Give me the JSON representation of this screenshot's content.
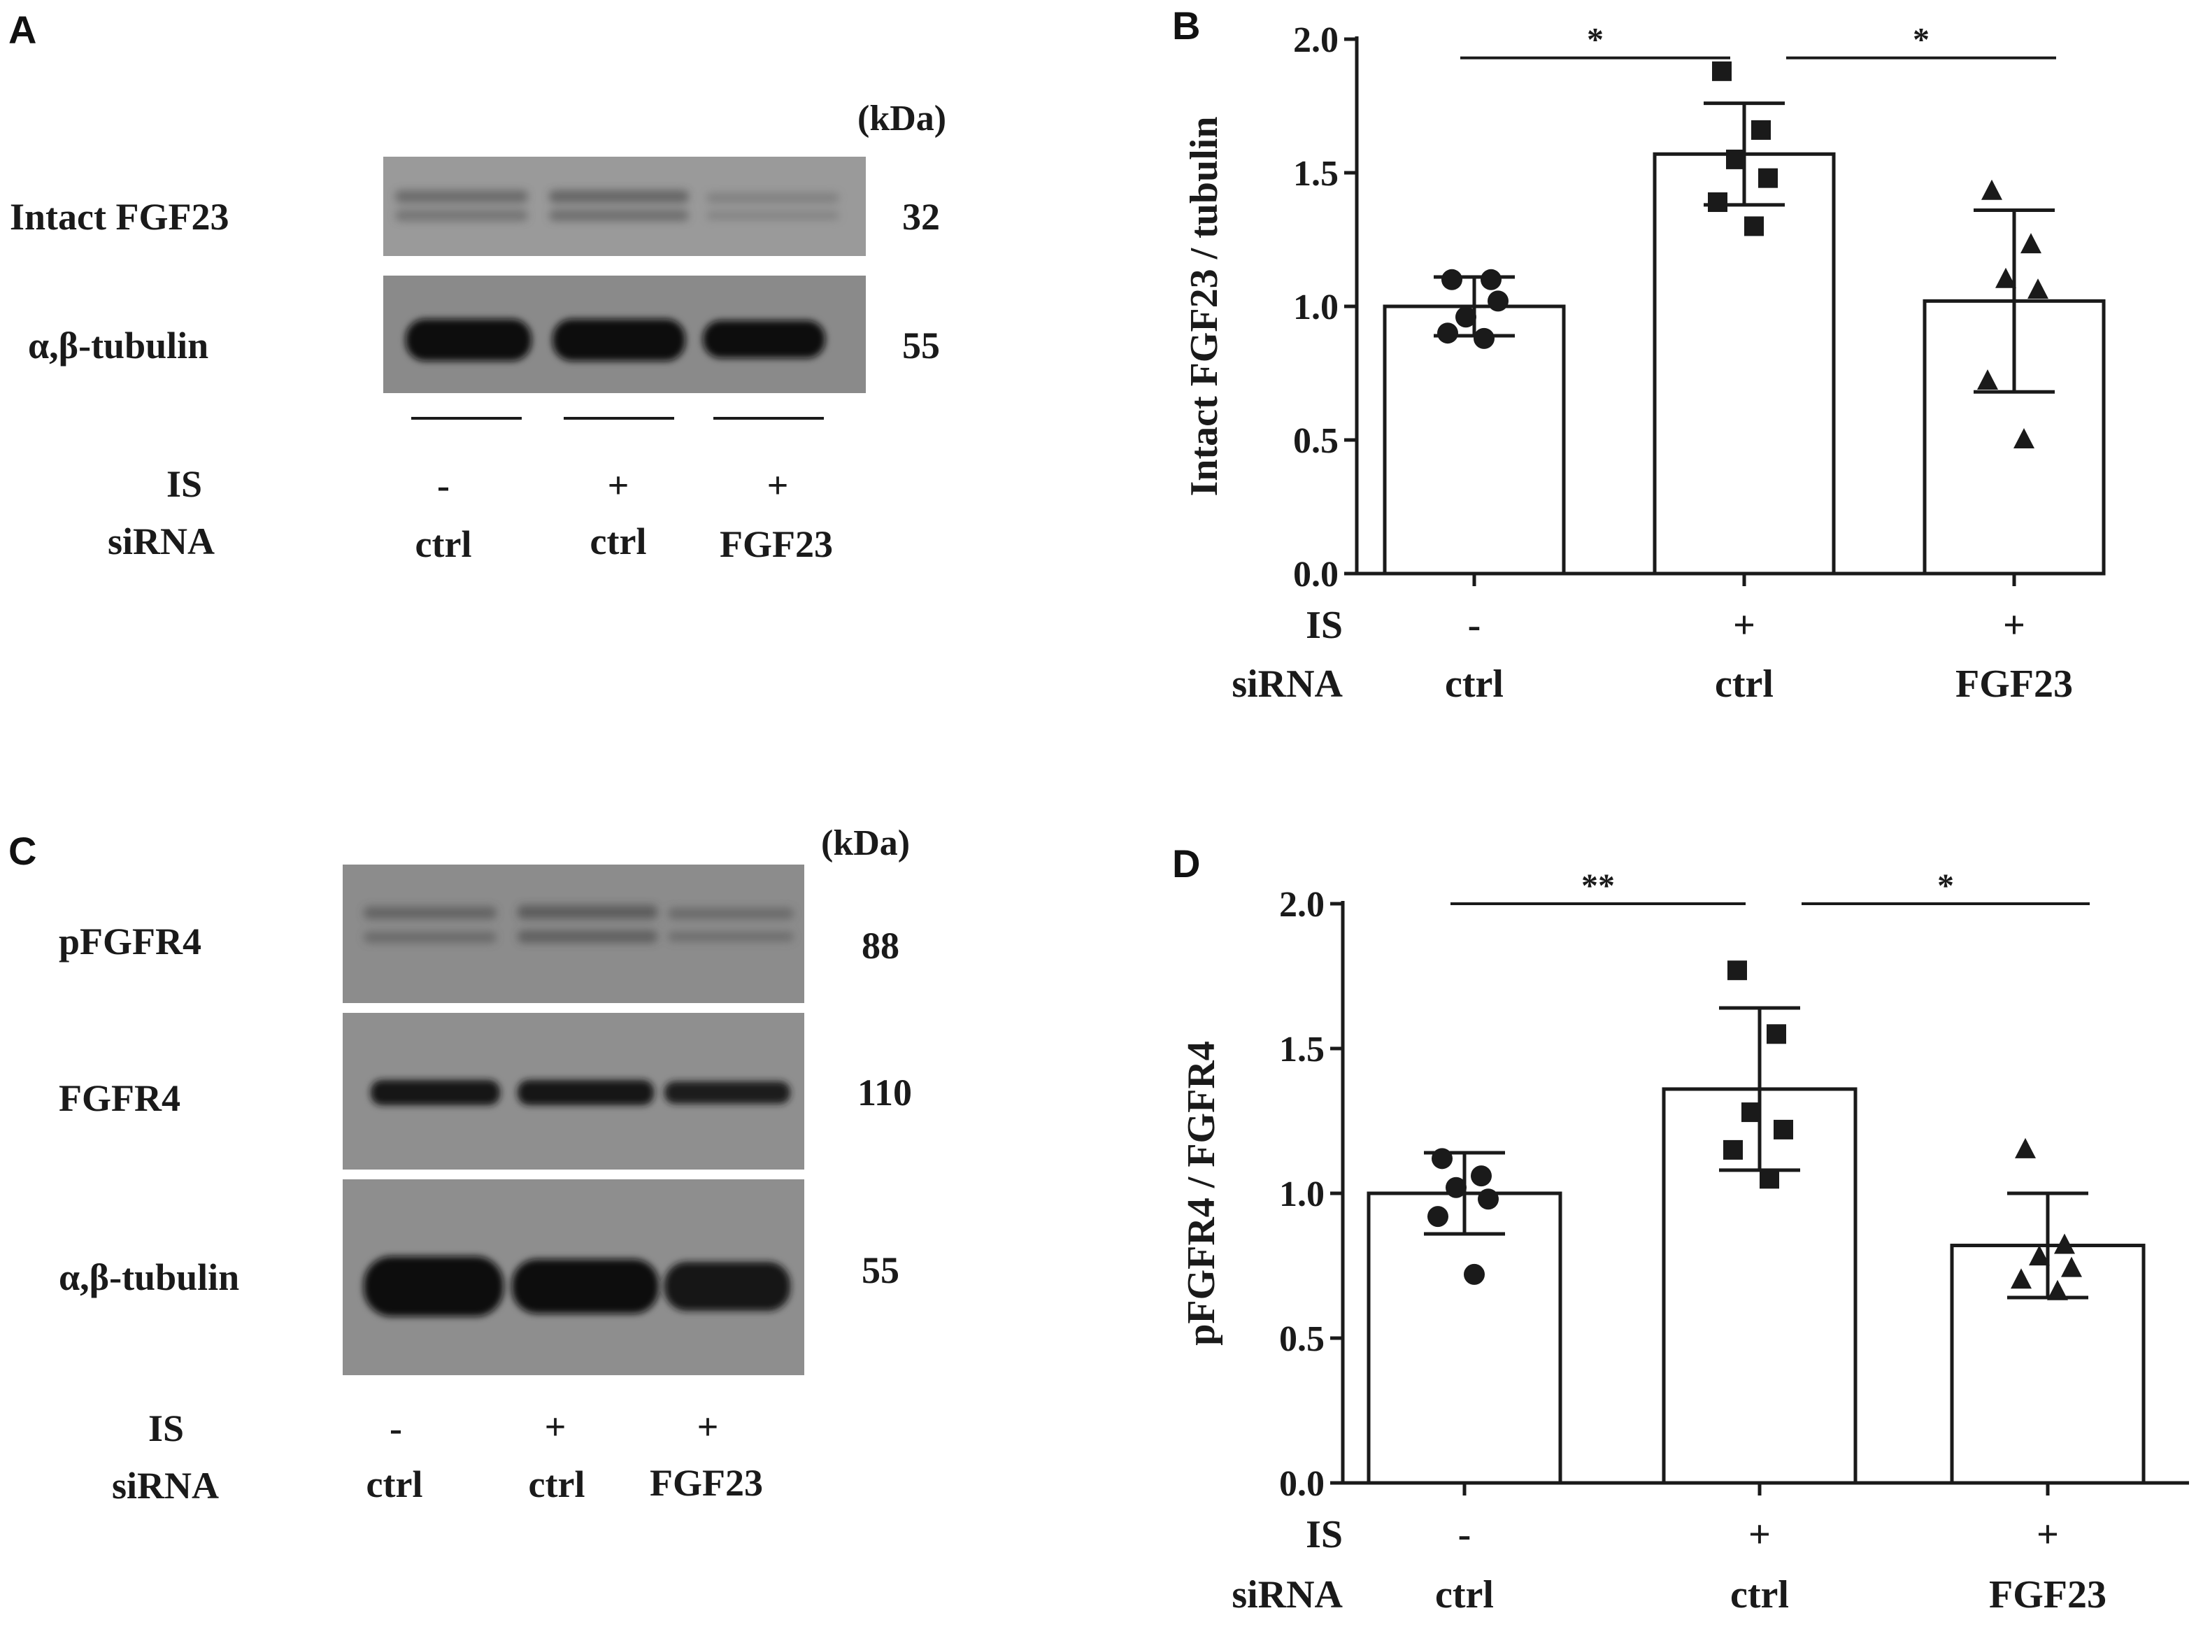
{
  "colors": {
    "ink": "#1a1a1a",
    "bar_fill": "#ffffff",
    "blot_background": "#8f8f8f",
    "blot_band": "#111111"
  },
  "panel_a": {
    "letter": "A",
    "unit": "(kDa)",
    "bands": [
      {
        "label": "Intact  FGF23",
        "kda": "32"
      },
      {
        "label": "α,β-tubulin",
        "kda": "55"
      }
    ],
    "conditions": {
      "row1_label": "IS",
      "row2_label": "siRNA",
      "lanes": [
        {
          "is": "-",
          "sirna": "ctrl"
        },
        {
          "is": "+",
          "sirna": "ctrl"
        },
        {
          "is": "+",
          "sirna": "FGF23"
        }
      ]
    }
  },
  "panel_c": {
    "letter": "C",
    "unit": "(kDa)",
    "bands": [
      {
        "label": "pFGFR4",
        "kda": "88"
      },
      {
        "label": "FGFR4",
        "kda": "110"
      },
      {
        "label": "α,β-tubulin",
        "kda": "55"
      }
    ],
    "conditions": {
      "row1_label": "IS",
      "row2_label": "siRNA",
      "lanes": [
        {
          "is": "-",
          "sirna": "ctrl"
        },
        {
          "is": "+",
          "sirna": "ctrl"
        },
        {
          "is": "+",
          "sirna": "FGF23"
        }
      ]
    }
  },
  "chart_data": [
    {
      "panel": "B",
      "type": "bar",
      "ylabel": "Intact FGF23 / tubulin",
      "ylim": [
        0,
        2.0
      ],
      "yticks": [
        "0.0",
        "0.5",
        "1.0",
        "1.5",
        "2.0"
      ],
      "row1_label": "IS",
      "row2_label": "siRNA",
      "categories": [
        {
          "is": "-",
          "sirna": "ctrl"
        },
        {
          "is": "+",
          "sirna": "ctrl"
        },
        {
          "is": "+",
          "sirna": "FGF23"
        }
      ],
      "values": [
        1.0,
        1.57,
        1.02
      ],
      "sd": [
        0.11,
        0.19,
        0.34
      ],
      "markers": [
        "circle",
        "square",
        "triangle"
      ],
      "points": [
        [
          1.1,
          1.1,
          0.96,
          1.02,
          0.9,
          0.88
        ],
        [
          1.88,
          1.66,
          1.55,
          1.48,
          1.39,
          1.3
        ],
        [
          1.43,
          1.23,
          1.1,
          1.06,
          0.72,
          0.5
        ]
      ],
      "significance": [
        {
          "from": 0,
          "to": 1,
          "label": "*",
          "y": 1.93
        },
        {
          "from": 1,
          "to": 2,
          "label": "*",
          "y": 1.93
        }
      ]
    },
    {
      "panel": "D",
      "type": "bar",
      "ylabel": "pFGFR4 / FGFR4",
      "ylim": [
        0,
        2.0
      ],
      "yticks": [
        "0.0",
        "0.5",
        "1.0",
        "1.5",
        "2.0"
      ],
      "row1_label": "IS",
      "row2_label": "siRNA",
      "categories": [
        {
          "is": "-",
          "sirna": "ctrl"
        },
        {
          "is": "+",
          "sirna": "ctrl"
        },
        {
          "is": "+",
          "sirna": "FGF23"
        }
      ],
      "values": [
        1.0,
        1.36,
        0.82
      ],
      "sd": [
        0.14,
        0.28,
        0.18
      ],
      "markers": [
        "circle",
        "square",
        "triangle"
      ],
      "points": [
        [
          1.12,
          1.06,
          1.02,
          0.98,
          0.92,
          0.72
        ],
        [
          1.77,
          1.55,
          1.28,
          1.22,
          1.15,
          1.05
        ],
        [
          1.15,
          0.82,
          0.78,
          0.74,
          0.7,
          0.66
        ]
      ],
      "significance": [
        {
          "from": 0,
          "to": 1,
          "label": "**",
          "y": 2.0
        },
        {
          "from": 1,
          "to": 2,
          "label": "*",
          "y": 2.0
        }
      ]
    }
  ]
}
